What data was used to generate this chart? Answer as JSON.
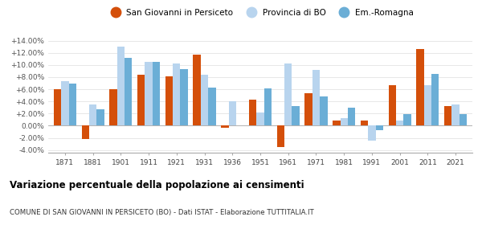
{
  "years": [
    1871,
    1881,
    1901,
    1911,
    1921,
    1931,
    1936,
    1951,
    1961,
    1971,
    1981,
    1991,
    2001,
    2011,
    2021
  ],
  "san_giovanni": [
    6.0,
    -2.2,
    6.0,
    8.4,
    8.1,
    11.7,
    -0.3,
    4.3,
    -3.5,
    5.4,
    0.8,
    0.8,
    6.6,
    12.6,
    3.2
  ],
  "provincia_bo": [
    7.3,
    3.5,
    13.0,
    10.5,
    10.2,
    8.4,
    4.0,
    2.2,
    10.2,
    9.2,
    1.2,
    -2.5,
    0.8,
    6.6,
    3.5
  ],
  "emilia_romagna": [
    6.9,
    2.7,
    11.1,
    10.5,
    9.3,
    6.3,
    null,
    6.1,
    3.2,
    4.8,
    2.9,
    -0.7,
    1.9,
    8.5,
    1.9
  ],
  "color_san": "#d44f0a",
  "color_prov": "#b8d4ee",
  "color_emilia": "#6baed6",
  "bg_color": "#f5f5f5",
  "ylim": [
    -4.5,
    15.5
  ],
  "yticks": [
    -4.0,
    -2.0,
    0.0,
    2.0,
    4.0,
    6.0,
    8.0,
    10.0,
    12.0,
    14.0
  ],
  "title_bold": "Variazione percentuale della popolazione ai censimenti",
  "subtitle": "COMUNE DI SAN GIOVANNI IN PERSICETO (BO) - Dati ISTAT - Elaborazione TUTTITALIA.IT",
  "legend_labels": [
    "San Giovanni in Persiceto",
    "Provincia di BO",
    "Em.-Romagna"
  ],
  "bar_width": 0.27
}
